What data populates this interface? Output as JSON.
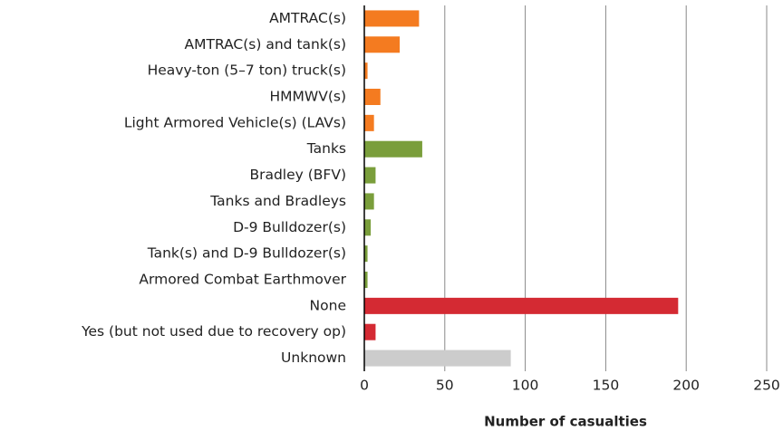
{
  "chart_data": {
    "type": "bar",
    "orientation": "horizontal",
    "x_label": "Number of casualties",
    "categories": [
      "AMTRAC(s)",
      "AMTRAC(s) and tank(s)",
      "Heavy-ton (5–7 ton) truck(s)",
      "HMMWV(s)",
      "Light Armored Vehicle(s) (LAVs)",
      "Tanks",
      "Bradley (BFV)",
      "Tanks and Bradleys",
      "D-9 Bulldozer(s)",
      "Tank(s) and D-9 Bulldozer(s)",
      "Armored Combat Earthmover",
      "None",
      "Yes (but not used due to recovery op)",
      "Unknown"
    ],
    "values": [
      34,
      22,
      2,
      10,
      6,
      36,
      7,
      6,
      4,
      2,
      2,
      195,
      7,
      91
    ],
    "colors": [
      "#f47b20",
      "#f47b20",
      "#f47b20",
      "#f47b20",
      "#f47b20",
      "#7a9e3b",
      "#7a9e3b",
      "#7a9e3b",
      "#7a9e3b",
      "#7a9e3b",
      "#7a9e3b",
      "#d42a33",
      "#d42a33",
      "#cccccc"
    ],
    "xlim": [
      0,
      250
    ],
    "xticks": [
      0,
      50,
      100,
      150,
      200,
      250
    ],
    "grid": true
  }
}
